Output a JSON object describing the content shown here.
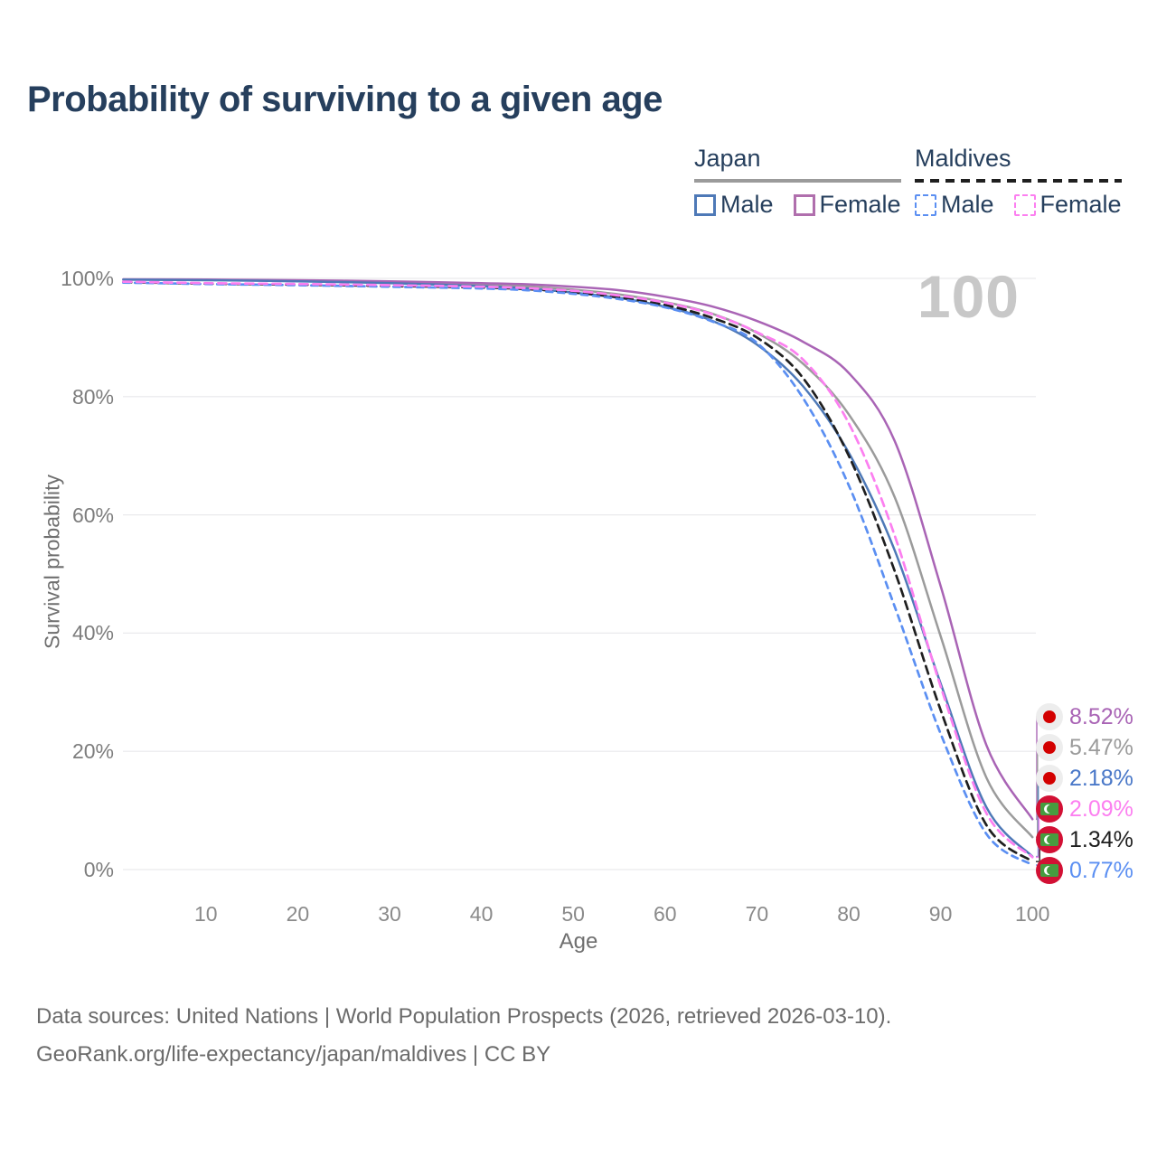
{
  "title": "Probability of surviving to a given age",
  "watermark": "100",
  "legend": {
    "groups": [
      {
        "country": "Japan",
        "underline": "solid",
        "underline_color": "#9b9b9b",
        "items": [
          {
            "label": "Male",
            "color": "#4e79b7",
            "dashed": false
          },
          {
            "label": "Female",
            "color": "#b06fad",
            "dashed": false
          }
        ]
      },
      {
        "country": "Maldives",
        "underline": "dashed",
        "underline_color": "#1f1f1f",
        "items": [
          {
            "label": "Male",
            "color": "#5b8ff2",
            "dashed": true
          },
          {
            "label": "Female",
            "color": "#fc7ff0",
            "dashed": true
          }
        ]
      }
    ]
  },
  "axes": {
    "y_title": "Survival probability",
    "x_title": "Age",
    "y_ticks": [
      "100%",
      "80%",
      "60%",
      "40%",
      "20%",
      "0%"
    ],
    "x_ticks": [
      "10",
      "20",
      "30",
      "40",
      "50",
      "60",
      "70",
      "80",
      "90",
      "100"
    ]
  },
  "end_labels": [
    {
      "flag": "japan",
      "value": "8.52%",
      "color": "#a964b5"
    },
    {
      "flag": "japan",
      "value": "5.47%",
      "color": "#9b9b9b"
    },
    {
      "flag": "japan",
      "value": "2.18%",
      "color": "#4a78c8"
    },
    {
      "flag": "maldives",
      "value": "2.09%",
      "color": "#fc7ff0"
    },
    {
      "flag": "maldives",
      "value": "1.34%",
      "color": "#1f1f1f"
    },
    {
      "flag": "maldives",
      "value": "0.77%",
      "color": "#5b8ff2"
    }
  ],
  "footer": {
    "line1": "Data sources: United Nations | World Population Prospects (2026, retrieved 2026-03-10).",
    "line2": "GeoRank.org/life-expectancy/japan/maldives | CC BY"
  },
  "chart_data": {
    "type": "line",
    "title": "Probability of surviving to a given age",
    "xlabel": "Age",
    "ylabel": "Survival probability",
    "xlim": [
      1,
      100
    ],
    "ylim": [
      0,
      100
    ],
    "grid": "horizontal",
    "legend_position": "top-right",
    "x": [
      1,
      10,
      20,
      30,
      40,
      45,
      50,
      55,
      60,
      65,
      70,
      75,
      80,
      85,
      90,
      95,
      100
    ],
    "series": [
      {
        "name": "Japan Both sexes",
        "country": "Japan",
        "sex": "both",
        "color": "#9b9b9b",
        "dash": "solid",
        "end_label": "5.47%",
        "values": [
          99.8,
          99.75,
          99.6,
          99.35,
          98.95,
          98.65,
          98.1,
          97.3,
          96.0,
          94.1,
          90.8,
          85.6,
          77.0,
          63.0,
          39.5,
          15.5,
          5.47
        ]
      },
      {
        "name": "Japan Female",
        "country": "Japan",
        "sex": "female",
        "color": "#a964b5",
        "dash": "solid",
        "end_label": "8.52%",
        "values": [
          99.85,
          99.8,
          99.7,
          99.5,
          99.2,
          99.0,
          98.6,
          98.0,
          96.9,
          95.3,
          92.8,
          89.3,
          84.0,
          72.5,
          48.0,
          21.0,
          8.52
        ]
      },
      {
        "name": "Japan Male",
        "country": "Japan",
        "sex": "male",
        "color": "#4e79b7",
        "dash": "solid",
        "end_label": "2.18%",
        "values": [
          99.78,
          99.7,
          99.5,
          99.2,
          98.7,
          98.3,
          97.6,
          96.7,
          95.2,
          92.9,
          88.8,
          81.8,
          70.5,
          54.0,
          31.5,
          10.5,
          2.18
        ]
      },
      {
        "name": "Maldives Both sexes",
        "country": "Maldives",
        "sex": "both",
        "color": "#1f1f1f",
        "dash": "dashed",
        "end_label": "1.34%",
        "values": [
          99.38,
          99.12,
          98.95,
          98.72,
          98.45,
          98.18,
          97.65,
          96.8,
          95.5,
          93.4,
          90.0,
          83.2,
          70.0,
          50.5,
          27.0,
          7.5,
          1.34
        ]
      },
      {
        "name": "Maldives Male",
        "country": "Maldives",
        "sex": "male",
        "color": "#5b8ff2",
        "dash": "dashed",
        "end_label": "0.77%",
        "values": [
          99.3,
          99.05,
          98.85,
          98.6,
          98.3,
          98.0,
          97.4,
          96.5,
          95.1,
          92.8,
          89.1,
          79.8,
          65.0,
          44.5,
          23.0,
          6.0,
          0.77
        ]
      },
      {
        "name": "Maldives Female",
        "country": "Maldives",
        "sex": "female",
        "color": "#fc7ff0",
        "dash": "dashed",
        "end_label": "2.09%",
        "values": [
          99.45,
          99.2,
          99.05,
          98.85,
          98.6,
          98.35,
          97.9,
          97.1,
          95.9,
          94.0,
          90.9,
          86.3,
          75.5,
          56.5,
          31.0,
          9.5,
          2.09
        ]
      }
    ]
  }
}
